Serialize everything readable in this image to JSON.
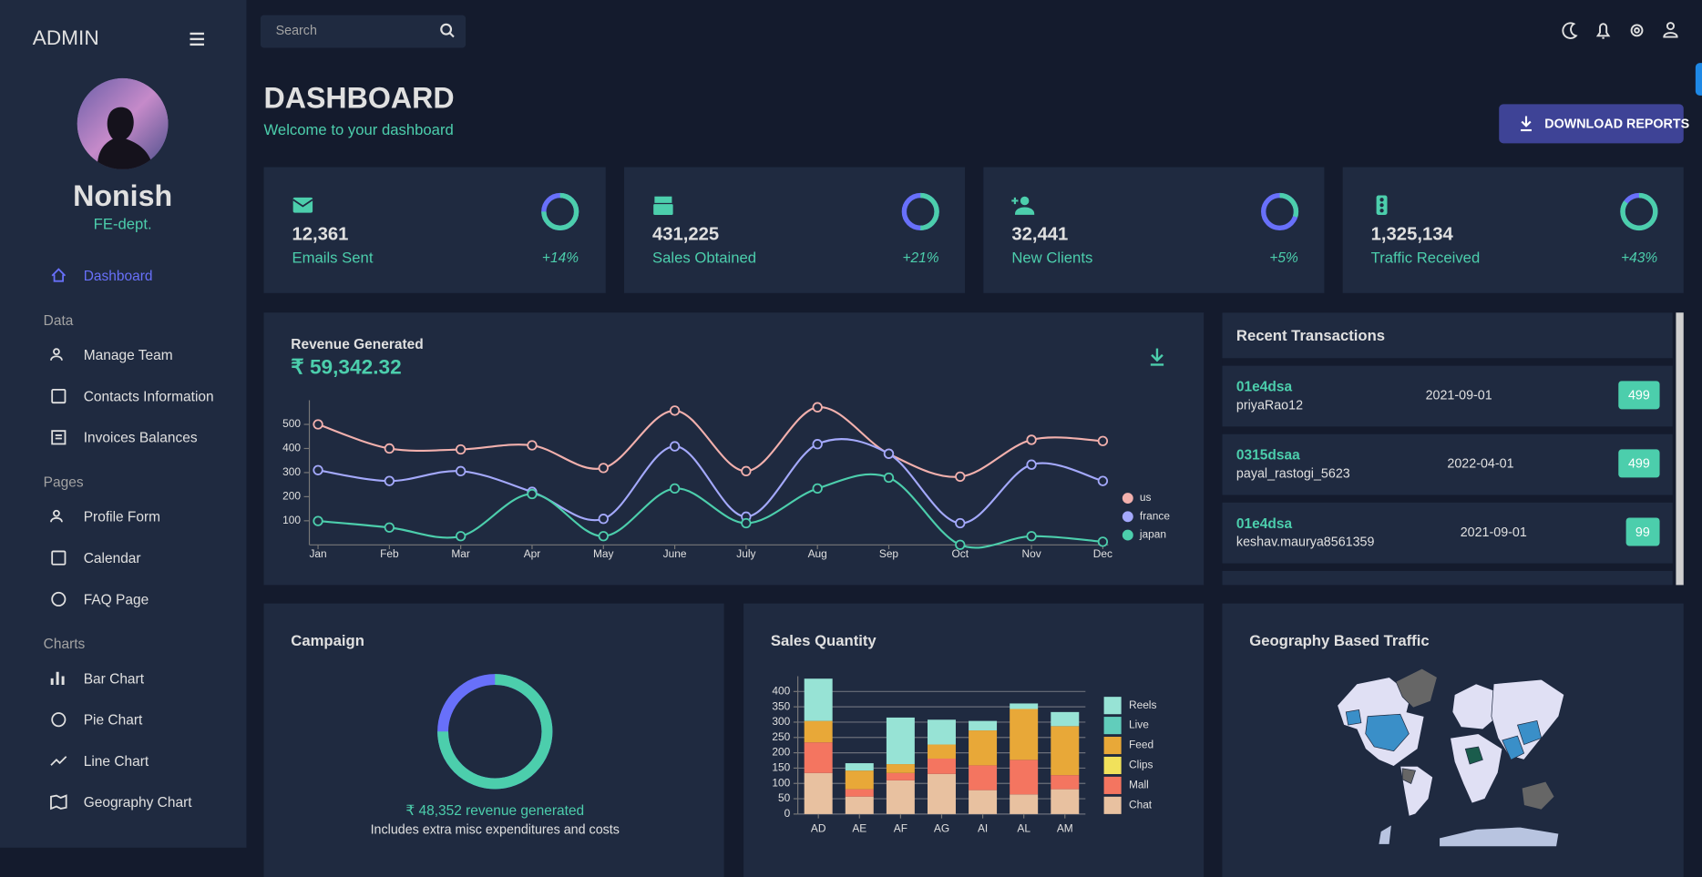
{
  "sidebar": {
    "brand": "ADMIN",
    "profile": {
      "name": "Nonish",
      "role": "FE-dept."
    },
    "active_item": "Dashboard",
    "groups": [
      {
        "title": "Data",
        "items": [
          "Manage Team",
          "Contacts Information",
          "Invoices Balances"
        ]
      },
      {
        "title": "Pages",
        "items": [
          "Profile Form",
          "Calendar",
          "FAQ Page"
        ]
      },
      {
        "title": "Charts",
        "items": [
          "Bar Chart",
          "Pie Chart",
          "Line Chart",
          "Geography Chart"
        ]
      }
    ]
  },
  "topbar": {
    "search_placeholder": "Search"
  },
  "header": {
    "title": "DASHBOARD",
    "subtitle": "Welcome to your dashboard",
    "button": "DOWNLOAD REPORTS"
  },
  "stats": [
    {
      "value": "12,361",
      "label": "Emails Sent",
      "change": "+14%",
      "progress": 0.75
    },
    {
      "value": "431,225",
      "label": "Sales Obtained",
      "change": "+21%",
      "progress": 0.5
    },
    {
      "value": "32,441",
      "label": "New Clients",
      "change": "+5%",
      "progress": 0.3
    },
    {
      "value": "1,325,134",
      "label": "Traffic Received",
      "change": "+43%",
      "progress": 0.85
    }
  ],
  "revenue": {
    "title": "Revenue Generated",
    "amount": "₹ 59,342.32",
    "chart": {
      "type": "line",
      "categories": [
        "Jan",
        "Feb",
        "Mar",
        "Apr",
        "May",
        "June",
        "July",
        "Aug",
        "Sep",
        "Oct",
        "Nov",
        "Dec"
      ],
      "series": [
        {
          "name": "us",
          "color": "#f2b0ad",
          "values": [
            500,
            400,
            396,
            413,
            319,
            557,
            306,
            571,
            378,
            283,
            436,
            431
          ]
        },
        {
          "name": "france",
          "color": "#a4a9fc",
          "values": [
            310,
            265,
            306,
            220,
            108,
            409,
            117,
            418,
            378,
            90,
            333,
            265
          ]
        },
        {
          "name": "japan",
          "color": "#4cceac",
          "values": [
            99,
            72,
            36,
            211,
            36,
            234,
            90,
            234,
            279,
            0,
            36,
            13
          ]
        }
      ],
      "ylim": [
        0,
        600
      ],
      "yticks": [
        100,
        200,
        300,
        400,
        500
      ],
      "legend": "right"
    }
  },
  "transactions": {
    "title": "Recent Transactions",
    "rows": [
      {
        "tx_id": "01e4dsa",
        "user": "priyaRao12",
        "date": "2021-09-01",
        "cost": "499"
      },
      {
        "tx_id": "0315dsaa",
        "user": "payal_rastogi_5623",
        "date": "2022-04-01",
        "cost": "499"
      },
      {
        "tx_id": "01e4dsa",
        "user": "keshav.maurya8561359",
        "date": "2021-09-01",
        "cost": "99"
      }
    ]
  },
  "campaign": {
    "title": "Campaign",
    "progress": 0.75,
    "revenue_text": "₹ 48,352 revenue generated",
    "note": "Includes extra misc expenditures and costs"
  },
  "sales": {
    "title": "Sales Quantity",
    "chart": {
      "type": "bar",
      "stacked": true,
      "categories": [
        "AD",
        "AE",
        "AF",
        "AG",
        "AI",
        "AL",
        "AM"
      ],
      "series": [
        {
          "name": "Chat",
          "color": "#e8c1a0",
          "values": [
            134,
            57,
            110,
            131,
            78,
            64,
            81
          ]
        },
        {
          "name": "Mall",
          "color": "#f47560",
          "values": [
            100,
            24,
            24,
            50,
            81,
            113,
            46
          ]
        },
        {
          "name": "Clips",
          "color": "#f1e15b",
          "values": [
            0,
            0,
            0,
            0,
            0,
            0,
            0
          ]
        },
        {
          "name": "Feed",
          "color": "#e8a838",
          "values": [
            70,
            61,
            29,
            46,
            114,
            166,
            160
          ]
        },
        {
          "name": "Live",
          "color": "#61cdbb",
          "values": [
            0,
            0,
            0,
            0,
            0,
            0,
            0
          ]
        },
        {
          "name": "Reels",
          "color": "#97e3d5",
          "values": [
            138,
            24,
            152,
            81,
            31,
            18,
            46
          ]
        }
      ],
      "ylim": [
        0,
        450
      ],
      "yticks": [
        0,
        50,
        100,
        150,
        200,
        250,
        300,
        350,
        400
      ],
      "grid": true,
      "legend": "right"
    }
  },
  "geography": {
    "title": "Geography Based Traffic"
  }
}
